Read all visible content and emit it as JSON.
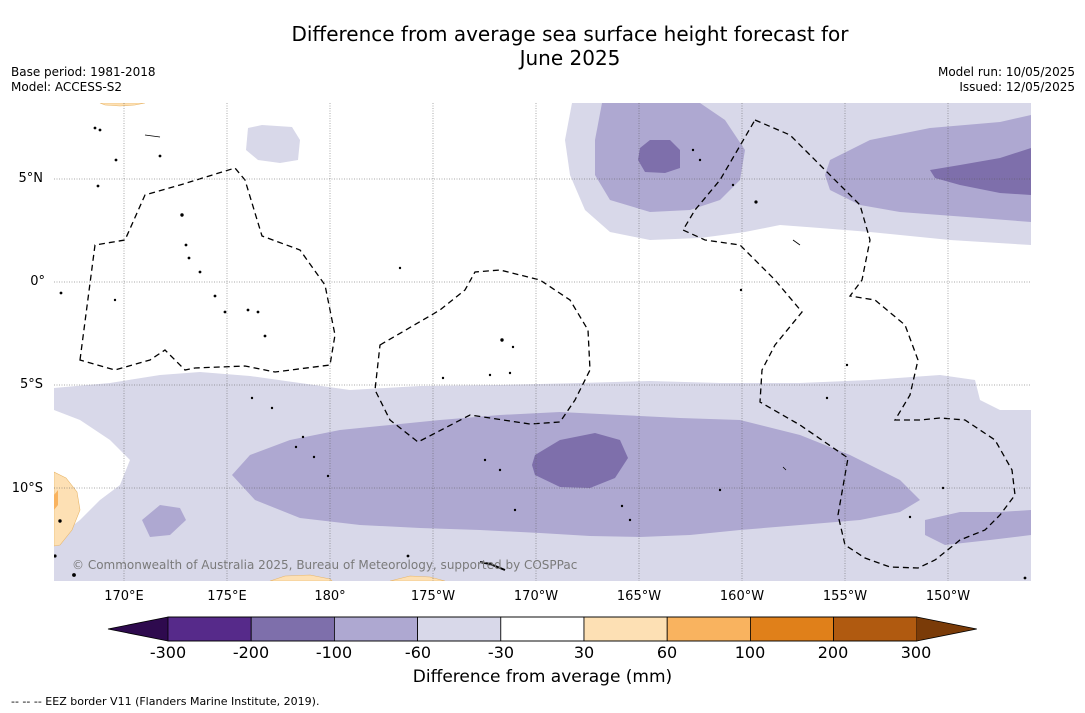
{
  "title": {
    "line1": "Difference from average sea surface height forecast for",
    "line2": "June 2025"
  },
  "meta": {
    "base_period": "Base period: 1981-2018",
    "model": "Model: ACCESS-S2",
    "model_run": "Model run: 10/05/2025",
    "issued": "Issued: 12/05/2025"
  },
  "axes": {
    "lat_labels": [
      "5°N",
      "0°",
      "5°S",
      "10°S"
    ],
    "lon_labels": [
      "170°E",
      "175°E",
      "180°",
      "175°W",
      "170°W",
      "165°W",
      "160°W",
      "155°W",
      "150°W"
    ]
  },
  "colorbar": {
    "title": "Difference from average (mm)",
    "ticks": [
      "-300",
      "-200",
      "-100",
      "-60",
      "-30",
      "30",
      "60",
      "100",
      "200",
      "300"
    ],
    "colors": {
      "under": "#2e0a4e",
      "bins": [
        "#562a8a",
        "#7e6fab",
        "#aea8d1",
        "#d8d8e9",
        "#ffffff",
        "#fde0b4",
        "#f9b35f",
        "#e0801a",
        "#b05a10"
      ],
      "over": "#7a3b08"
    }
  },
  "copyright": "© Commonwealth of Australia 2025, Bureau of Meteorology, supported by COSPPac",
  "footnote": "-- -- -- EEZ border V11 (Flanders Marine Institute, 2019)."
}
